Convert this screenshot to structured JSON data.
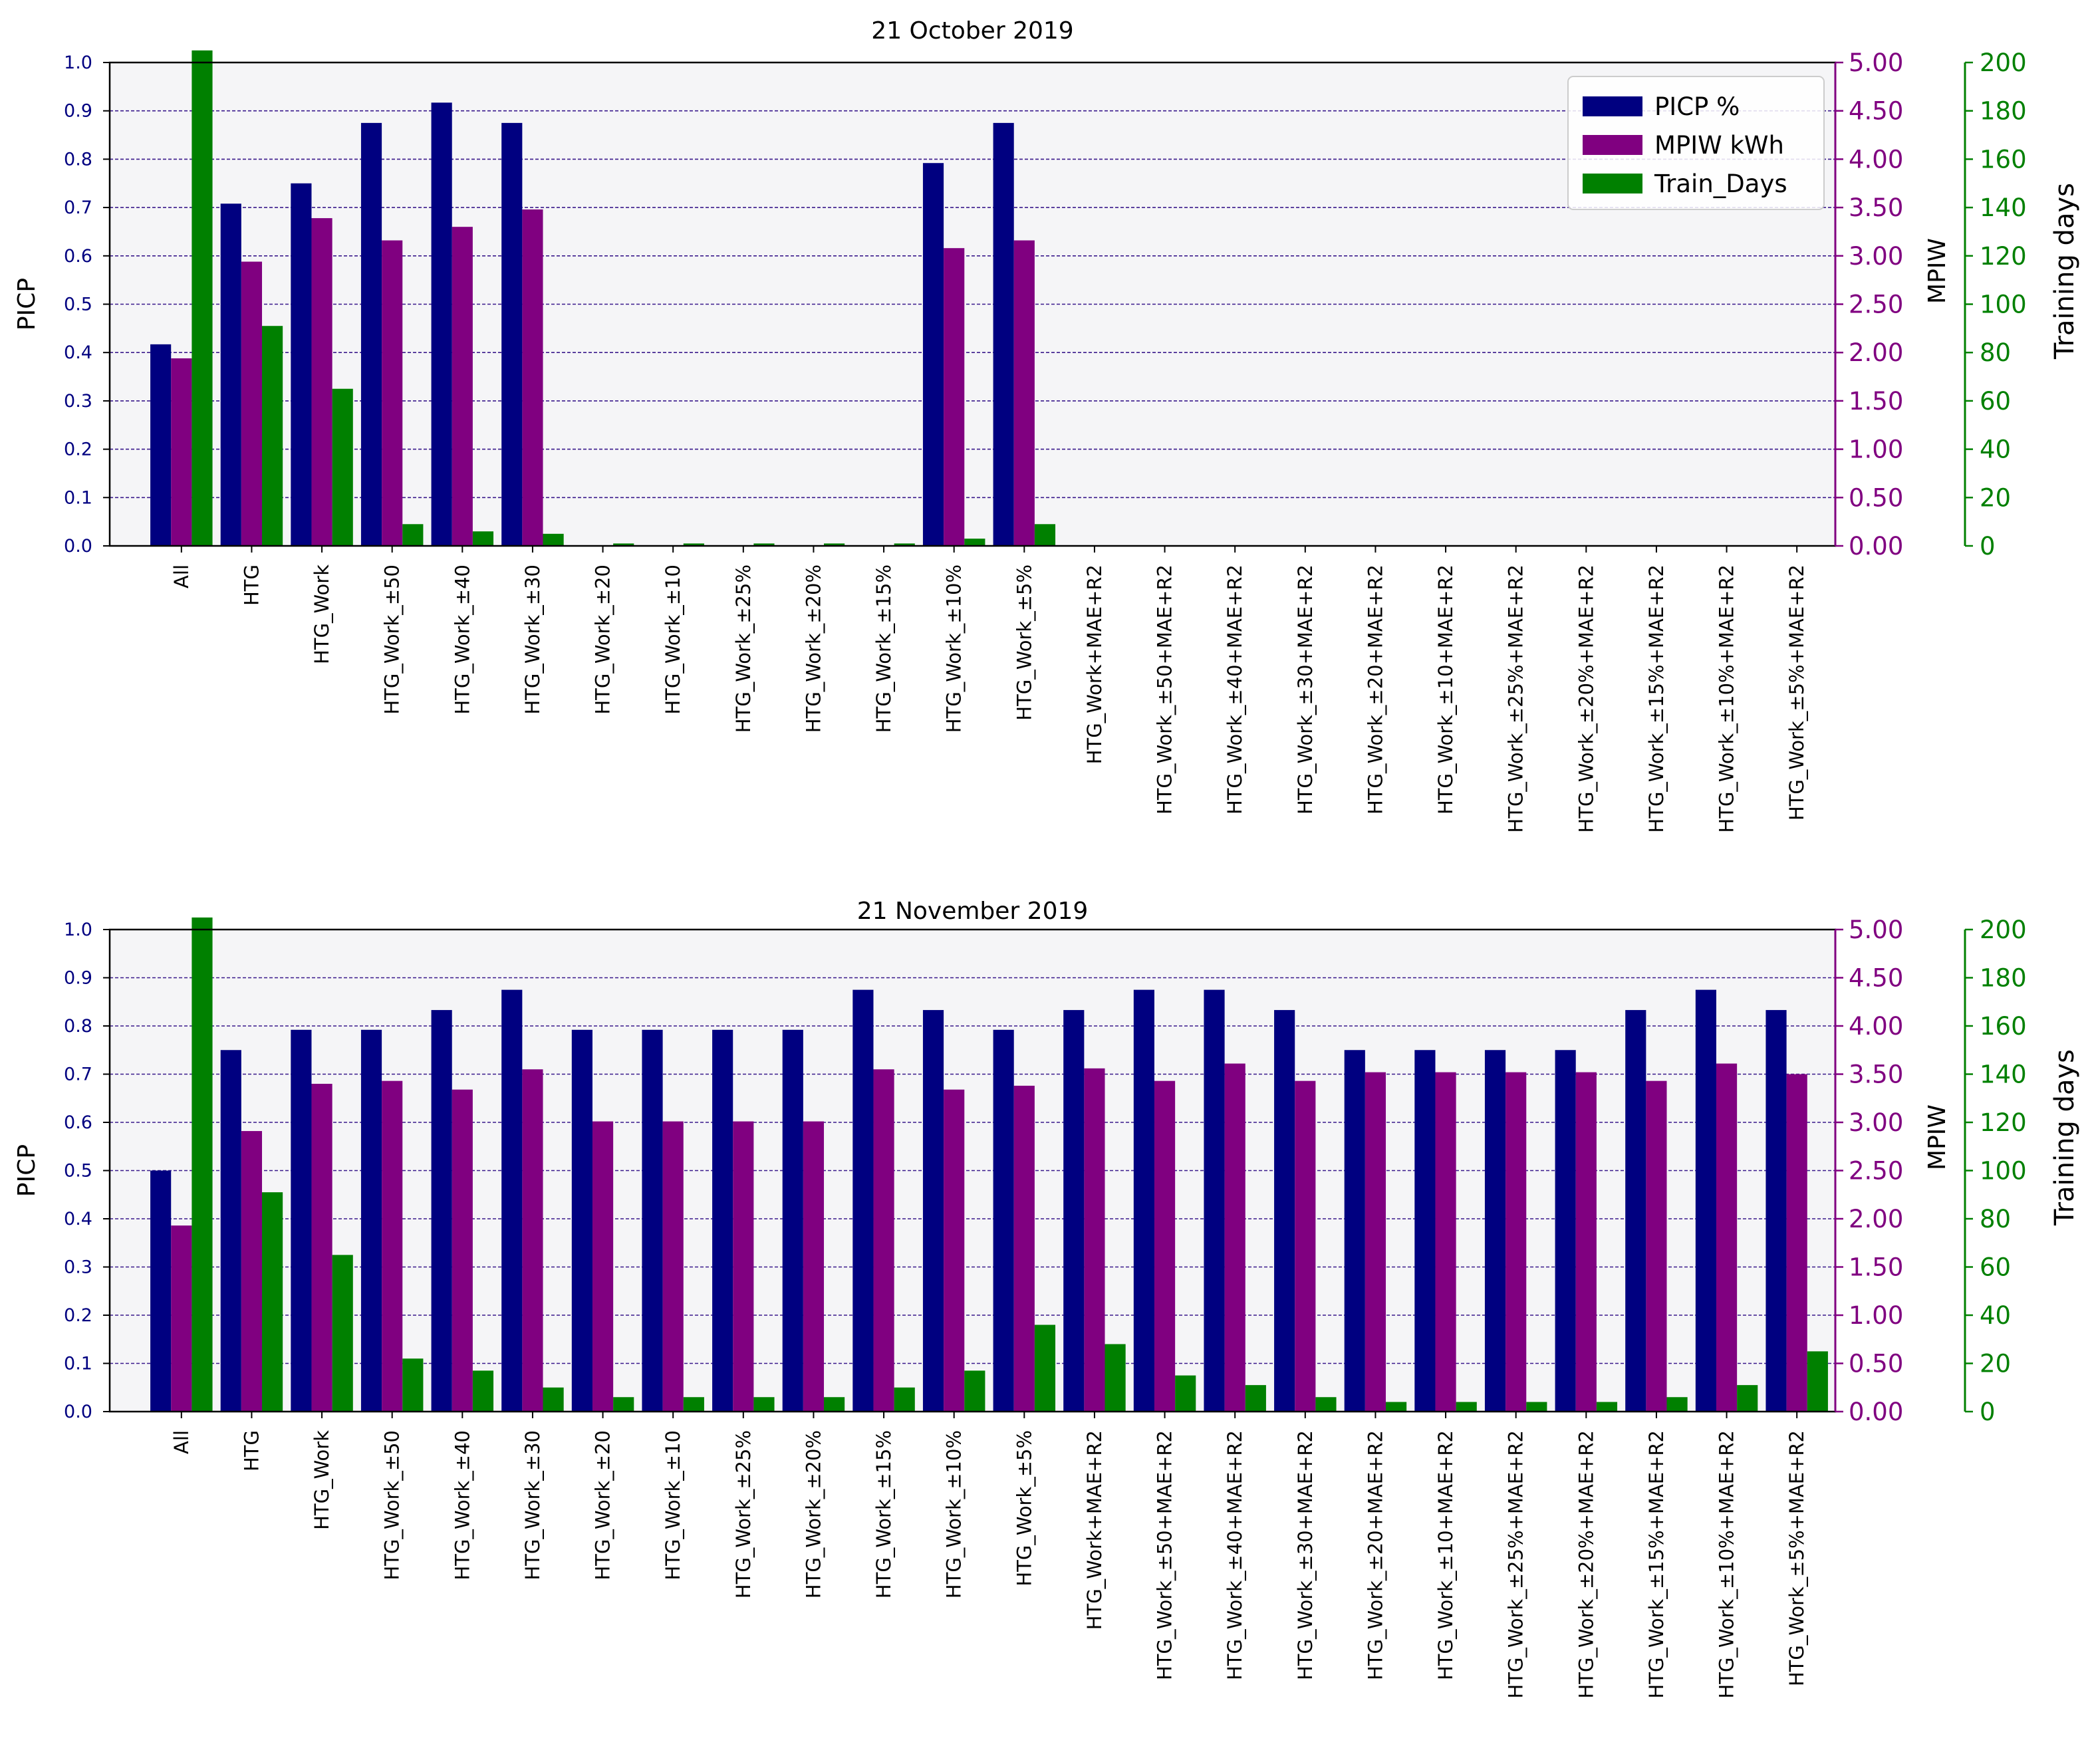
{
  "colors": {
    "picp": "#000080",
    "mpiw": "#800080",
    "train": "#008000",
    "plot_bg": "#f5f5f7",
    "grid": "#3a1a8c",
    "axis_picp": "#000080",
    "axis_mpiw": "#800080",
    "axis_train": "#008000"
  },
  "legend": {
    "labels": [
      "PICP %",
      "MPIW kWh",
      "Train_Days"
    ],
    "placement": "top-right of first chart"
  },
  "chart_data": [
    {
      "type": "bar",
      "title": "21 October 2019",
      "ylabel": "PICP",
      "ylabel_right1": "MPIW",
      "ylabel_right2": "Training days",
      "ylim": [
        0,
        1.0
      ],
      "ylim_mpiw": [
        0,
        5.0
      ],
      "ylim_train": [
        0,
        200
      ],
      "yticks": [
        "0.0",
        "0.1",
        "0.2",
        "0.3",
        "0.4",
        "0.5",
        "0.6",
        "0.7",
        "0.8",
        "0.9",
        "1.0"
      ],
      "yticks_mpiw": [
        "0.00",
        "0.50",
        "1.00",
        "1.50",
        "2.00",
        "2.50",
        "3.00",
        "3.50",
        "4.00",
        "4.50",
        "5.00"
      ],
      "yticks_train": [
        "0",
        "20",
        "40",
        "60",
        "80",
        "100",
        "120",
        "140",
        "160",
        "180",
        "200"
      ],
      "categories": [
        "All",
        "HTG",
        "HTG_Work",
        "HTG_Work_±50",
        "HTG_Work_±40",
        "HTG_Work_±30",
        "HTG_Work_±20",
        "HTG_Work_±10",
        "HTG_Work_±25%",
        "HTG_Work_±20%",
        "HTG_Work_±15%",
        "HTG_Work_±10%",
        "HTG_Work_±5%",
        "HTG_Work+MAE+R2",
        "HTG_Work_±50+MAE+R2",
        "HTG_Work_±40+MAE+R2",
        "HTG_Work_±30+MAE+R2",
        "HTG_Work_±20+MAE+R2",
        "HTG_Work_±10+MAE+R2",
        "HTG_Work_±25%+MAE+R2",
        "HTG_Work_±20%+MAE+R2",
        "HTG_Work_±15%+MAE+R2",
        "HTG_Work_±10%+MAE+R2",
        "HTG_Work_±5%+MAE+R2"
      ],
      "series": [
        {
          "name": "PICP %",
          "axis": "picp",
          "values": [
            0.417,
            0.708,
            0.75,
            0.875,
            0.917,
            0.875,
            0,
            0,
            0,
            0,
            0,
            0.792,
            0.875,
            0,
            0,
            0,
            0,
            0,
            0,
            0,
            0,
            0,
            0,
            0
          ]
        },
        {
          "name": "MPIW kWh",
          "axis": "mpiw",
          "values": [
            1.94,
            2.94,
            3.39,
            3.16,
            3.3,
            3.48,
            0,
            0,
            0,
            0,
            0,
            3.08,
            3.16,
            0,
            0,
            0,
            0,
            0,
            0,
            0,
            0,
            0,
            0,
            0
          ]
        },
        {
          "name": "Train_Days",
          "axis": "train",
          "values": [
            205,
            91,
            65,
            9,
            6,
            5,
            1,
            1,
            1,
            1,
            1,
            3,
            9,
            0,
            0,
            0,
            0,
            0,
            0,
            0,
            0,
            0,
            0,
            0
          ]
        }
      ]
    },
    {
      "type": "bar",
      "title": "21 November 2019",
      "ylabel": "PICP",
      "ylabel_right1": "MPIW",
      "ylabel_right2": "Training days",
      "ylim": [
        0,
        1.0
      ],
      "ylim_mpiw": [
        0,
        5.0
      ],
      "ylim_train": [
        0,
        200
      ],
      "yticks": [
        "0.0",
        "0.1",
        "0.2",
        "0.3",
        "0.4",
        "0.5",
        "0.6",
        "0.7",
        "0.8",
        "0.9",
        "1.0"
      ],
      "yticks_mpiw": [
        "0.00",
        "0.50",
        "1.00",
        "1.50",
        "2.00",
        "2.50",
        "3.00",
        "3.50",
        "4.00",
        "4.50",
        "5.00"
      ],
      "yticks_train": [
        "0",
        "20",
        "40",
        "60",
        "80",
        "100",
        "120",
        "140",
        "160",
        "180",
        "200"
      ],
      "categories": [
        "All",
        "HTG",
        "HTG_Work",
        "HTG_Work_±50",
        "HTG_Work_±40",
        "HTG_Work_±30",
        "HTG_Work_±20",
        "HTG_Work_±10",
        "HTG_Work_±25%",
        "HTG_Work_±20%",
        "HTG_Work_±15%",
        "HTG_Work_±10%",
        "HTG_Work_±5%",
        "HTG_Work+MAE+R2",
        "HTG_Work_±50+MAE+R2",
        "HTG_Work_±40+MAE+R2",
        "HTG_Work_±30+MAE+R2",
        "HTG_Work_±20+MAE+R2",
        "HTG_Work_±10+MAE+R2",
        "HTG_Work_±25%+MAE+R2",
        "HTG_Work_±20%+MAE+R2",
        "HTG_Work_±15%+MAE+R2",
        "HTG_Work_±10%+MAE+R2",
        "HTG_Work_±5%+MAE+R2"
      ],
      "series": [
        {
          "name": "PICP %",
          "axis": "picp",
          "values": [
            0.5,
            0.75,
            0.792,
            0.792,
            0.833,
            0.875,
            0.792,
            0.792,
            0.792,
            0.792,
            0.875,
            0.833,
            0.792,
            0.833,
            0.875,
            0.875,
            0.833,
            0.75,
            0.75,
            0.75,
            0.75,
            0.833,
            0.875,
            0.833
          ]
        },
        {
          "name": "MPIW kWh",
          "axis": "mpiw",
          "values": [
            1.93,
            2.91,
            3.4,
            3.43,
            3.34,
            3.55,
            3.01,
            3.01,
            3.01,
            3.01,
            3.55,
            3.34,
            3.38,
            3.56,
            3.43,
            3.61,
            3.43,
            3.52,
            3.52,
            3.52,
            3.52,
            3.43,
            3.61,
            3.5
          ]
        },
        {
          "name": "Train_Days",
          "axis": "train",
          "values": [
            205,
            91,
            65,
            22,
            17,
            10,
            6,
            6,
            6,
            6,
            10,
            17,
            36,
            28,
            15,
            11,
            6,
            4,
            4,
            4,
            4,
            6,
            11,
            25
          ]
        }
      ]
    }
  ]
}
